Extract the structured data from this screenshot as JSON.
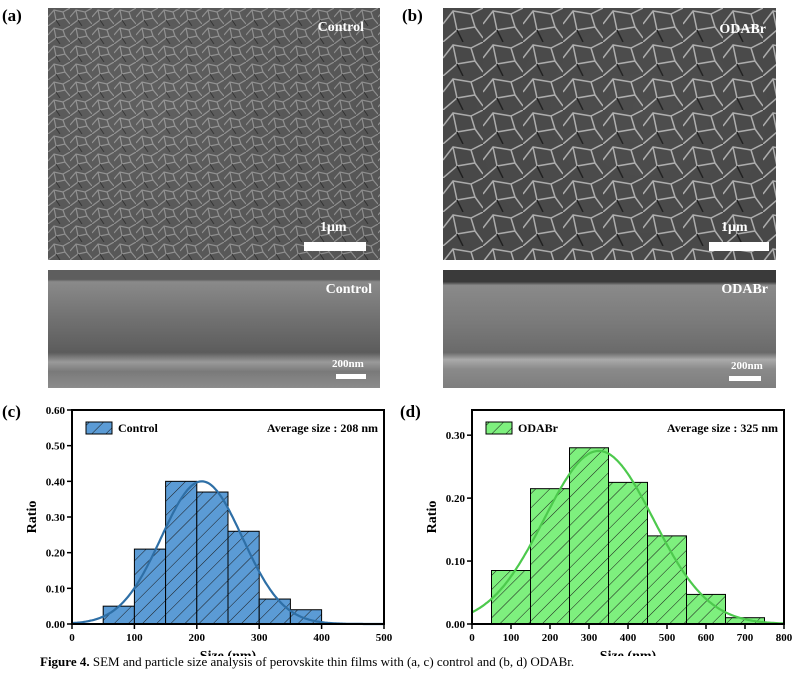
{
  "panels": {
    "a": {
      "label": "(a)",
      "sample": "Control",
      "scale": "1μm"
    },
    "b": {
      "label": "(b)",
      "sample": "ODABr",
      "scale": "1μm"
    },
    "a_cross": {
      "sample": "Control",
      "scale": "200nm"
    },
    "b_cross": {
      "sample": "ODABr",
      "scale": "200nm"
    },
    "c": {
      "label": "(c)"
    },
    "d": {
      "label": "(d)"
    }
  },
  "caption": {
    "prefix": "Figure 4.",
    "text": " SEM and particle size analysis of perovskite thin films with (a, c) control and (b, d) ODABr."
  },
  "colors": {
    "control_fill": "#5b9bd5",
    "control_line": "#2e6fa6",
    "odabr_fill": "#7ef07e",
    "odabr_line": "#4dc94d"
  },
  "chart_data": [
    {
      "type": "bar",
      "legend": "Control",
      "annotation": "Average size : 208 nm",
      "xlabel": "Size (nm)",
      "ylabel": "Ratio",
      "xlim": [
        0,
        500
      ],
      "ylim": [
        0,
        0.6
      ],
      "xticks": [
        "0",
        "100",
        "200",
        "300",
        "400",
        "500"
      ],
      "yticks": [
        "0.00",
        "0.10",
        "0.20",
        "0.30",
        "0.40",
        "0.50",
        "0.60"
      ],
      "bins": [
        [
          50,
          100
        ],
        [
          100,
          150
        ],
        [
          150,
          200
        ],
        [
          200,
          250
        ],
        [
          250,
          300
        ],
        [
          300,
          350
        ],
        [
          350,
          400
        ]
      ],
      "values": [
        0.05,
        0.21,
        0.4,
        0.37,
        0.26,
        0.07,
        0.04
      ],
      "fit_mean": 208,
      "fit_sigma": 65,
      "fit_peak": 0.4
    },
    {
      "type": "bar",
      "legend": "ODABr",
      "annotation": "Average size : 325 nm",
      "xlabel": "Size (nm)",
      "ylabel": "Ratio",
      "xlim": [
        0,
        800
      ],
      "ylim": [
        0,
        0.34
      ],
      "xticks": [
        "0",
        "100",
        "200",
        "300",
        "400",
        "500",
        "600",
        "700",
        "800"
      ],
      "yticks": [
        "0.00",
        "0.10",
        "0.20",
        "0.30"
      ],
      "bins": [
        [
          50,
          150
        ],
        [
          150,
          250
        ],
        [
          250,
          350
        ],
        [
          350,
          450
        ],
        [
          450,
          550
        ],
        [
          550,
          650
        ],
        [
          650,
          750
        ]
      ],
      "values": [
        0.085,
        0.215,
        0.28,
        0.225,
        0.14,
        0.047,
        0.01
      ],
      "fit_mean": 325,
      "fit_sigma": 140,
      "fit_peak": 0.275
    }
  ]
}
